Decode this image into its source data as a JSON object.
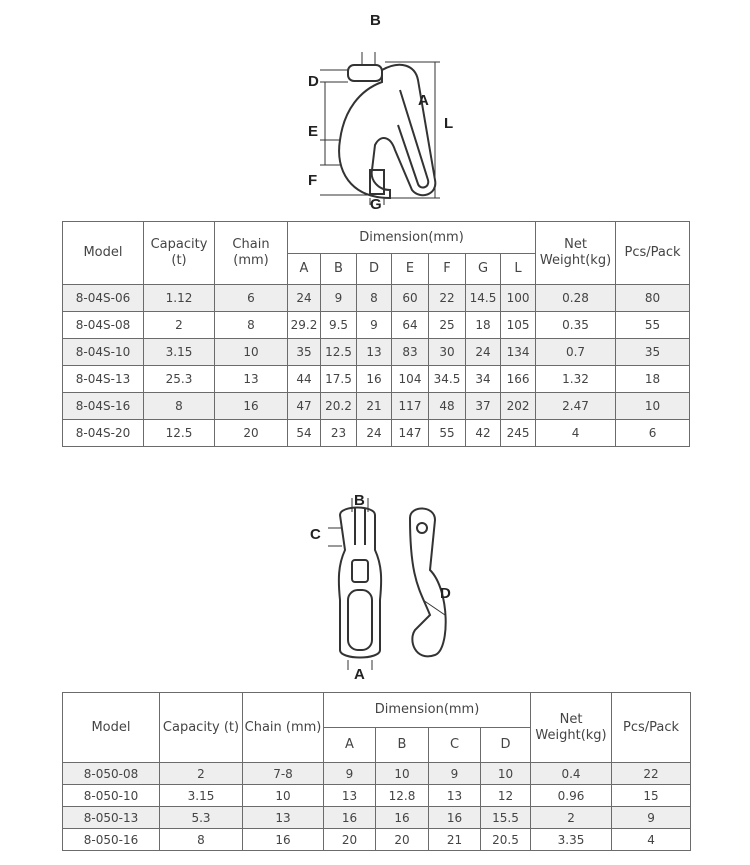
{
  "hook_diagram": {
    "labels": [
      "B",
      "D",
      "A",
      "E",
      "L",
      "F",
      "G"
    ]
  },
  "table1": {
    "headers": {
      "model": "Model",
      "capacity": "Capacity (t)",
      "chain": "Chain (mm)",
      "dimension": "Dimension(mm)",
      "net_weight": "Net Weight(kg)",
      "pcs_pack": "Pcs/Pack"
    },
    "dim_columns": [
      "A",
      "B",
      "D",
      "E",
      "F",
      "G",
      "L"
    ],
    "rows": [
      [
        "8-04S-06",
        "1.12",
        "6",
        "24",
        "9",
        "8",
        "60",
        "22",
        "14.5",
        "100",
        "0.28",
        "80"
      ],
      [
        "8-04S-08",
        "2",
        "8",
        "29.2",
        "9.5",
        "9",
        "64",
        "25",
        "18",
        "105",
        "0.35",
        "55"
      ],
      [
        "8-04S-10",
        "3.15",
        "10",
        "35",
        "12.5",
        "13",
        "83",
        "30",
        "24",
        "134",
        "0.7",
        "35"
      ],
      [
        "8-04S-13",
        "25.3",
        "13",
        "44",
        "17.5",
        "16",
        "104",
        "34.5",
        "34",
        "166",
        "1.32",
        "18"
      ],
      [
        "8-04S-16",
        "8",
        "16",
        "47",
        "20.2",
        "21",
        "117",
        "48",
        "37",
        "202",
        "2.47",
        "10"
      ],
      [
        "8-04S-20",
        "12.5",
        "20",
        "54",
        "23",
        "24",
        "147",
        "55",
        "42",
        "245",
        "4",
        "6"
      ]
    ]
  },
  "grab_diagram": {
    "labels": [
      "B",
      "C",
      "D",
      "A"
    ]
  },
  "table2": {
    "headers": {
      "model": "Model",
      "capacity": "Capacity (t)",
      "chain": "Chain (mm)",
      "dimension": "Dimension(mm)",
      "net_weight": "Net Weight(kg)",
      "pcs_pack": "Pcs/Pack"
    },
    "dim_columns": [
      "A",
      "B",
      "C",
      "D"
    ],
    "rows": [
      [
        "8-050-08",
        "2",
        "7-8",
        "9",
        "10",
        "9",
        "10",
        "0.4",
        "22"
      ],
      [
        "8-050-10",
        "3.15",
        "10",
        "13",
        "12.8",
        "13",
        "12",
        "0.96",
        "15"
      ],
      [
        "8-050-13",
        "5.3",
        "13",
        "16",
        "16",
        "16",
        "15.5",
        "2",
        "9"
      ],
      [
        "8-050-16",
        "8",
        "16",
        "20",
        "20",
        "21",
        "20.5",
        "3.35",
        "4"
      ]
    ]
  }
}
